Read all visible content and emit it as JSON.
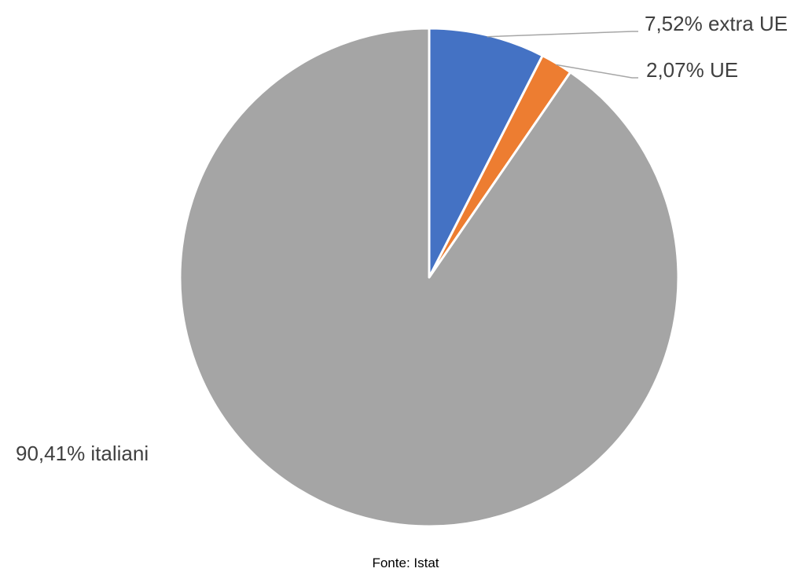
{
  "chart_data": {
    "type": "pie",
    "slices": [
      {
        "label": "7,52% extra UE",
        "value": 7.52,
        "color": "#4472c4"
      },
      {
        "label": "2,07% UE",
        "value": 2.07,
        "color": "#ed7d31"
      },
      {
        "label": "90,41% italiani",
        "value": 90.41,
        "color": "#a5a5a5"
      }
    ],
    "start_angle": "12 o'clock",
    "direction": "clockwise",
    "legend": "none",
    "source": "Fonte: Istat"
  }
}
